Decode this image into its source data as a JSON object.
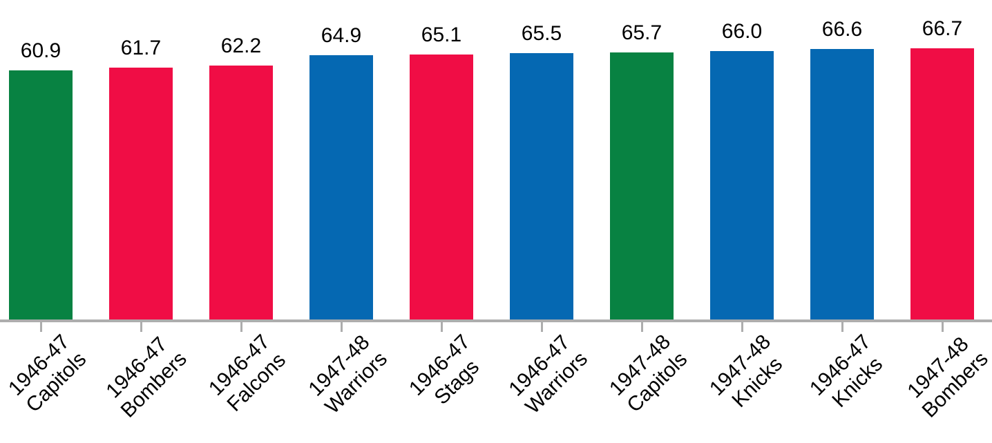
{
  "chart_data": {
    "type": "bar",
    "title": "",
    "xlabel": "",
    "ylabel": "",
    "background": "#FFFFFF",
    "text_color": "#000000",
    "value_labels_shown": true,
    "gridlines": false,
    "y_axis_visible": false,
    "x_label_rotation_deg": 45,
    "axis": {
      "baseline_color": "#ADADAD",
      "tick_color": "#ADADAD"
    },
    "palette": {
      "green": "#088242",
      "red": "#F00D45",
      "blue": "#0568B2"
    },
    "categories": [
      "1946-47 Capitols",
      "1946-47 Bombers",
      "1946-47 Falcons",
      "1947-48 Warriors",
      "1946-47 Stags",
      "1946-47 Warriors",
      "1947-48 Capitols",
      "1947-48 Knicks",
      "1946-47 Knicks",
      "1947-48 Bombers"
    ],
    "bars": [
      {
        "season": "1946-47",
        "team": "Capitols",
        "value": 60.9,
        "value_label": "60.9",
        "color": "#088242"
      },
      {
        "season": "1946-47",
        "team": "Bombers",
        "value": 61.7,
        "value_label": "61.7",
        "color": "#F00D45"
      },
      {
        "season": "1946-47",
        "team": "Falcons",
        "value": 62.2,
        "value_label": "62.2",
        "color": "#F00D45"
      },
      {
        "season": "1947-48",
        "team": "Warriors",
        "value": 64.9,
        "value_label": "64.9",
        "color": "#0568B2"
      },
      {
        "season": "1946-47",
        "team": "Stags",
        "value": 65.1,
        "value_label": "65.1",
        "color": "#F00D45"
      },
      {
        "season": "1946-47",
        "team": "Warriors",
        "value": 65.5,
        "value_label": "65.5",
        "color": "#0568B2"
      },
      {
        "season": "1947-48",
        "team": "Capitols",
        "value": 65.7,
        "value_label": "65.7",
        "color": "#088242"
      },
      {
        "season": "1947-48",
        "team": "Knicks",
        "value": 66.0,
        "value_label": "66.0",
        "color": "#0568B2"
      },
      {
        "season": "1946-47",
        "team": "Knicks",
        "value": 66.6,
        "value_label": "66.6",
        "color": "#0568B2"
      },
      {
        "season": "1947-48",
        "team": "Bombers",
        "value": 66.7,
        "value_label": "66.7",
        "color": "#F00D45"
      }
    ],
    "value_range_depicted": [
      60.9,
      66.7
    ]
  }
}
